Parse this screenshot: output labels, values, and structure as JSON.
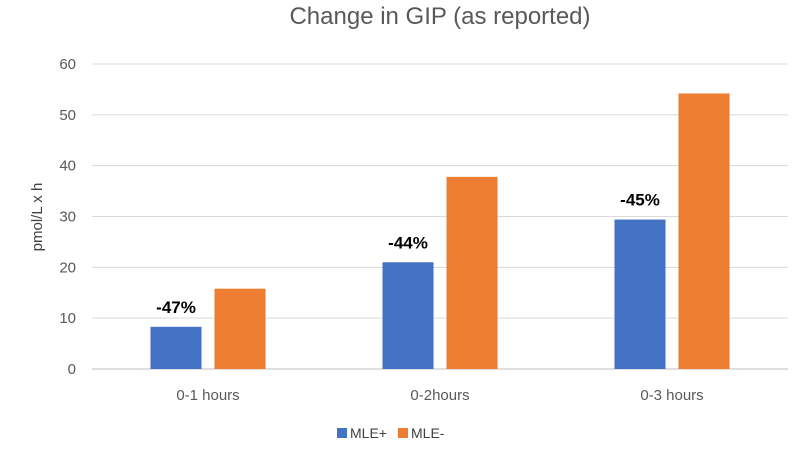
{
  "chart_data": {
    "type": "bar",
    "title": "Change in GIP (as reported)",
    "xlabel": "",
    "ylabel": "pmol/L x h",
    "categories": [
      "0-1 hours",
      "0-2hours",
      "0-3 hours"
    ],
    "series": [
      {
        "name": "MLE+",
        "values": [
          8.3,
          21.0,
          29.4
        ],
        "color": "#4472C4"
      },
      {
        "name": "MLE-",
        "values": [
          15.8,
          37.8,
          54.2
        ],
        "color": "#ED7D31"
      }
    ],
    "annotations": [
      "-47%",
      "-44%",
      "-45%"
    ],
    "ylim": [
      0,
      60
    ],
    "yticks": [
      "0",
      "10",
      "20",
      "30",
      "40",
      "50",
      "60"
    ],
    "grid": true,
    "legend_position": "bottom"
  }
}
